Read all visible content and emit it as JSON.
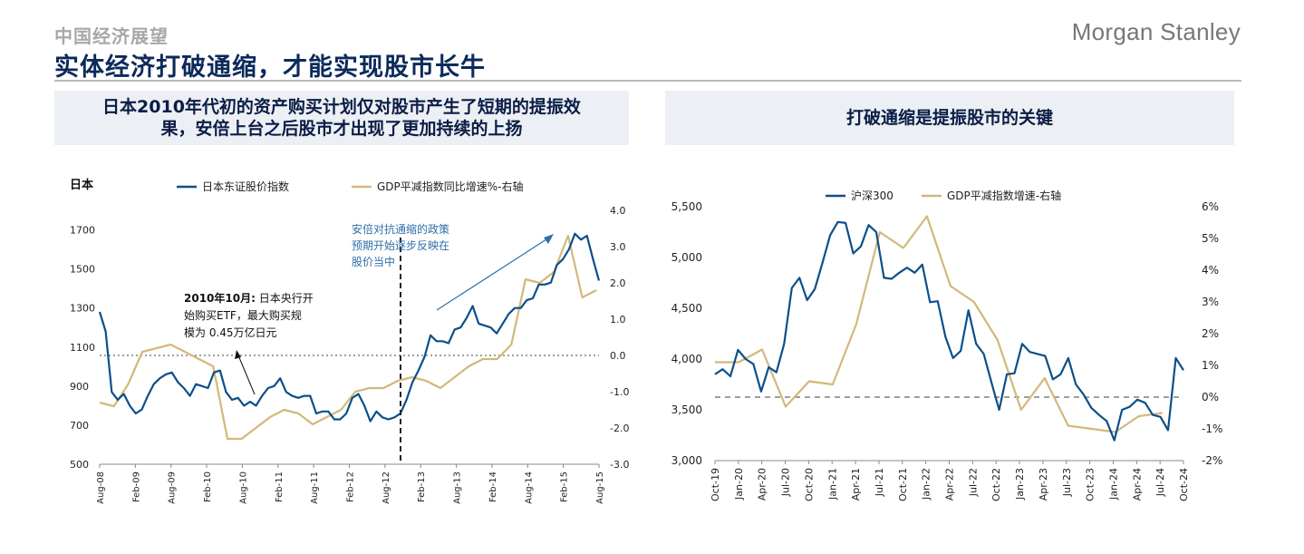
{
  "header": {
    "supertitle": "中国经济展望",
    "title": "实体经济打破通缩，才能实现股市长牛",
    "logo": "Morgan Stanley"
  },
  "panels": {
    "left_title_line1": "日本2010年代初的资产购买计划仅对股市产生了短期的提振效",
    "left_title_line2": "果，安倍上台之后股市才出现了更加持续的上扬",
    "right_title": "打破通缩是提振股市的关键"
  },
  "colors": {
    "navy": "#0b4f8a",
    "gold": "#d3b87a",
    "title_navy": "#0b2a5b",
    "header_bg": "#eceff4"
  },
  "chart_data": [
    {
      "type": "line",
      "title": "日本",
      "x_labels": [
        "Aug-08",
        "Feb-09",
        "Aug-09",
        "Feb-10",
        "Aug-10",
        "Feb-11",
        "Aug-11",
        "Feb-12",
        "Aug-12",
        "Feb-13",
        "Aug-13",
        "Feb-14",
        "Aug-14",
        "Feb-15",
        "Aug-15"
      ],
      "y_left": {
        "ticks": [
          "500",
          "700",
          "900",
          "1100",
          "1300",
          "1500",
          "1700"
        ],
        "lim": [
          500,
          1800
        ]
      },
      "y_right": {
        "ticks": [
          "-3.0",
          "-2.0",
          "-1.0",
          "0.0",
          "1.0",
          "2.0",
          "3.0",
          "4.0"
        ],
        "lim": [
          -3,
          4
        ]
      },
      "legend": [
        "日本东证股价指数",
        "GDP平减指数同比增速%-右轴"
      ],
      "annotations": {
        "abe_line1": "安倍对抗通缩的政策",
        "abe_line2": "预期开始逐步反映在",
        "abe_line3": "股价当中",
        "boj_bold": "2010年10月:",
        "boj_line1": " 日本央行开",
        "boj_line2": "始购买ETF，最大购买规",
        "boj_line3": "模为 0.45万亿日元"
      },
      "series": [
        {
          "name": "日本东证股价指数",
          "axis": "left",
          "color": "#0b4f8a",
          "values": [
            1280,
            1180,
            870,
            830,
            860,
            800,
            760,
            780,
            850,
            910,
            940,
            960,
            970,
            920,
            890,
            850,
            910,
            900,
            890,
            970,
            980,
            870,
            830,
            840,
            800,
            820,
            800,
            850,
            890,
            900,
            940,
            870,
            850,
            840,
            850,
            850,
            760,
            770,
            770,
            730,
            730,
            760,
            840,
            860,
            800,
            720,
            770,
            740,
            730,
            740,
            760,
            830,
            920,
            980,
            1050,
            1160,
            1130,
            1130,
            1120,
            1190,
            1200,
            1250,
            1310,
            1220,
            1210,
            1200,
            1170,
            1220,
            1270,
            1300,
            1300,
            1340,
            1350,
            1420,
            1420,
            1430,
            1520,
            1550,
            1600,
            1680,
            1650,
            1670,
            1550,
            1440
          ]
        },
        {
          "name": "GDP平减指数同比增速%-右轴",
          "axis": "right",
          "color": "#d3b87a",
          "values": [
            -1.3,
            -1.4,
            -0.8,
            0.1,
            0.2,
            0.3,
            0.1,
            -0.1,
            -0.3,
            -2.3,
            -2.3,
            -2.0,
            -1.7,
            -1.5,
            -1.6,
            -1.9,
            -1.7,
            -1.5,
            -1.0,
            -0.9,
            -0.9,
            -0.7,
            -0.6,
            -0.7,
            -0.9,
            -0.6,
            -0.3,
            -0.1,
            -0.1,
            0.3,
            2.1,
            2.0,
            2.3,
            3.3,
            1.6,
            1.8
          ]
        }
      ]
    },
    {
      "type": "line",
      "x_labels": [
        "Oct-19",
        "Jan-20",
        "Apr-20",
        "Jul-20",
        "Oct-20",
        "Jan-21",
        "Apr-21",
        "Jul-21",
        "Oct-21",
        "Jan-22",
        "Apr-22",
        "Jul-22",
        "Oct-22",
        "Jan-23",
        "Apr-23",
        "Jul-23",
        "Oct-23",
        "Jan-24",
        "Apr-24",
        "Jul-24",
        "Oct-24"
      ],
      "y_left": {
        "ticks": [
          "3,000",
          "3,500",
          "4,000",
          "4,500",
          "5,000",
          "5,500"
        ],
        "lim": [
          3000,
          5500
        ]
      },
      "y_right": {
        "ticks": [
          "-2%",
          "-1%",
          "0%",
          "1%",
          "2%",
          "3%",
          "4%",
          "5%",
          "6%"
        ],
        "lim": [
          -2,
          6
        ]
      },
      "legend": [
        "沪深300",
        "GDP平减指数增速-右轴"
      ],
      "series": [
        {
          "name": "沪深300",
          "axis": "left",
          "color": "#0b4f8a",
          "values": [
            3850,
            3900,
            3830,
            4090,
            4000,
            3950,
            3680,
            3920,
            3870,
            4150,
            4700,
            4800,
            4580,
            4690,
            4950,
            5220,
            5350,
            5340,
            5040,
            5110,
            5320,
            5250,
            4800,
            4790,
            4850,
            4900,
            4850,
            4930,
            4560,
            4570,
            4220,
            4010,
            4080,
            4480,
            4150,
            4050,
            3770,
            3500,
            3850,
            3860,
            4150,
            4070,
            4050,
            4030,
            3800,
            3850,
            4010,
            3750,
            3650,
            3520,
            3450,
            3390,
            3200,
            3500,
            3530,
            3600,
            3570,
            3450,
            3430,
            3300,
            4010,
            3890
          ]
        },
        {
          "name": "GDP平减指数增速-右轴",
          "axis": "right",
          "color": "#d3b87a",
          "values": [
            1.1,
            1.1,
            1.5,
            -0.3,
            0.5,
            0.4,
            2.3,
            5.2,
            4.7,
            5.7,
            3.5,
            3.0,
            1.8,
            -0.4,
            0.6,
            -0.9,
            -1.0,
            -1.1,
            -0.6,
            -0.5
          ]
        }
      ]
    }
  ]
}
